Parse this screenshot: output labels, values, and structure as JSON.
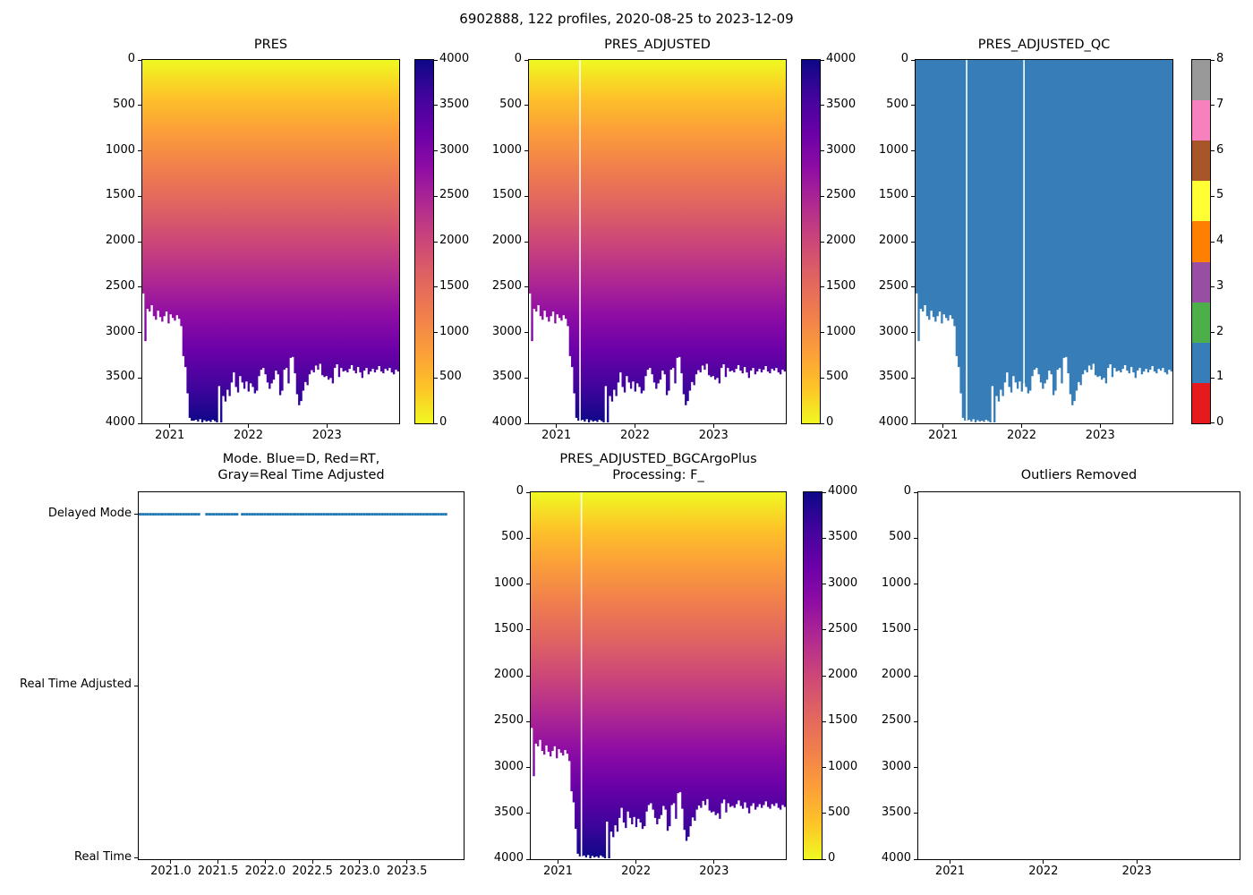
{
  "colors": {
    "background": "#ffffff",
    "axis": "#000000",
    "mode_marker_blue": "#1f77b4",
    "qc_flag1_blue": "#377eb8",
    "plasma_reversed_stops": [
      "#f0f921",
      "#fdc328",
      "#fb9d3a",
      "#f07e4d",
      "#e06461",
      "#cc4778",
      "#b12a90",
      "#8f0da4",
      "#6a00a8",
      "#41049d",
      "#0d0887"
    ],
    "qc_palette_0_to_8": [
      "#e41a1c",
      "#377eb8",
      "#4daf4a",
      "#984ea3",
      "#ff7f00",
      "#ffff33",
      "#a65628",
      "#f781bf",
      "#999999"
    ]
  },
  "chart_data": {
    "suptitle": "6902888, 122 profiles, 2020-08-25 to 2023-12-09",
    "platform_id": "6902888",
    "n_profiles": 122,
    "date_range": [
      "2020-08-25",
      "2023-12-09"
    ],
    "time_start": 2020.65,
    "profile_interval_years": 0.02697,
    "xlim_top": [
      2020.65,
      2023.92
    ],
    "xlim_bottom": [
      2020.66,
      2024.1
    ],
    "depth_ticks": [
      0,
      500,
      1000,
      1500,
      2000,
      2500,
      3000,
      3500,
      4000
    ],
    "pressure_cbar_ticks": [
      4000,
      3500,
      3000,
      2500,
      2000,
      1500,
      1000,
      500,
      0
    ],
    "qc_cbar_ticks": [
      0,
      1,
      2,
      3,
      4,
      5,
      6,
      7,
      8
    ],
    "qc_flag_value_everywhere": 1,
    "missing_profile_indices": [
      25,
      26,
      40
    ],
    "profile_max_pressure_dbar": [
      2570,
      3095,
      2740,
      2770,
      2700,
      2820,
      2860,
      2760,
      2830,
      2880,
      2820,
      2770,
      2900,
      2800,
      2840,
      2870,
      2810,
      2850,
      2930,
      3260,
      3380,
      3670,
      3940,
      3970,
      3970,
      3960,
      3980,
      3955,
      3990,
      3965,
      3980,
      3970,
      3985,
      3960,
      3975,
      3990,
      3590,
      3990,
      3700,
      3760,
      3630,
      3700,
      3550,
      3440,
      3600,
      3660,
      3480,
      3550,
      3620,
      3540,
      3650,
      3560,
      3600,
      3670,
      3640,
      3480,
      3410,
      3390,
      3460,
      3550,
      3620,
      3560,
      3520,
      3420,
      3460,
      3690,
      3640,
      3410,
      3390,
      3560,
      3280,
      3270,
      3450,
      3680,
      3800,
      3755,
      3640,
      3545,
      3580,
      3460,
      3415,
      3440,
      3365,
      3410,
      3345,
      3470,
      3490,
      3480,
      3520,
      3500,
      3560,
      3390,
      3350,
      3490,
      3390,
      3430,
      3420,
      3440,
      3400,
      3360,
      3420,
      3450,
      3380,
      3440,
      3500,
      3420,
      3390,
      3460,
      3430,
      3400,
      3440,
      3410,
      3370,
      3430,
      3450,
      3400,
      3420,
      3390,
      3440,
      3460,
      3410,
      3430
    ],
    "subplots": [
      {
        "id": "pres",
        "type": "heatmap",
        "title": "PRES",
        "colormap": "plasma_r",
        "xticks": [
          2021,
          2022,
          2023
        ],
        "missing_profile_times": []
      },
      {
        "id": "pres_adjusted",
        "type": "heatmap",
        "title": "PRES_ADJUSTED",
        "colormap": "plasma_r",
        "xticks": [
          2021,
          2022,
          2023
        ],
        "missing_profile_times": [
          2021.3
        ]
      },
      {
        "id": "pres_adjusted_qc",
        "type": "heatmap",
        "title": "PRES_ADJUSTED_QC",
        "colormap": "qc_flags_set1",
        "xticks": [
          2021,
          2022,
          2023
        ],
        "missing_profile_times": [
          2021.3,
          2022.03
        ]
      },
      {
        "id": "mode",
        "type": "scatter",
        "title_lines": [
          "Mode. Blue=D, Red=RT,",
          "Gray=Real Time Adjusted"
        ],
        "xticks": [
          2021.0,
          2021.5,
          2022.0,
          2022.5,
          2023.0,
          2023.5
        ],
        "ytick_labels": [
          "Delayed Mode",
          "Real Time Adjusted",
          "Real Time"
        ],
        "mode_of_all_profiles": "Delayed Mode"
      },
      {
        "id": "bgc",
        "type": "heatmap",
        "title_lines": [
          "PRES_ADJUSTED_BGCArgoPlus",
          "Processing: F_"
        ],
        "colormap": "plasma_r",
        "xticks": [
          2021,
          2022,
          2023
        ],
        "missing_profile_times": [
          2021.3
        ]
      },
      {
        "id": "outliers",
        "type": "empty",
        "title": "Outliers Removed",
        "xticks": [
          2021,
          2022,
          2023
        ],
        "n_outliers_shown": 0
      }
    ]
  }
}
